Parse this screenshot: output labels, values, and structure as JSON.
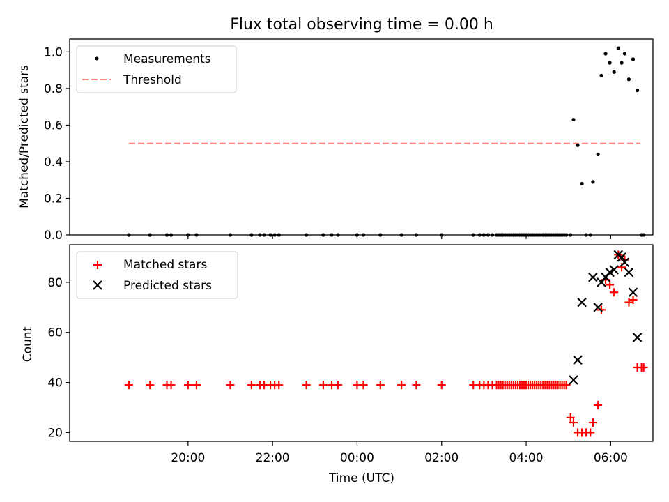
{
  "chart_data": [
    {
      "type": "scatter",
      "title": "Flux total observing time = 0.00 h",
      "xlabel": "",
      "ylabel": "Matched/Predicted stars",
      "xlim_hours": [
        17.2,
        31.0
      ],
      "ylim": [
        0,
        1.07
      ],
      "yticks": [
        0.0,
        0.2,
        0.4,
        0.6,
        0.8,
        1.0
      ],
      "ytick_labels": [
        "0.0",
        "0.2",
        "0.4",
        "0.6",
        "0.8",
        "1.0"
      ],
      "xticks_hours": [
        20,
        22,
        24,
        26,
        28,
        30
      ],
      "legend": {
        "placement": "upper-left",
        "entries": [
          "Measurements",
          "Threshold"
        ]
      },
      "threshold": {
        "value": 0.5,
        "x_range_hours": [
          18.6,
          30.7
        ],
        "color": "#ff7f7f"
      },
      "series": [
        {
          "name": "Measurements",
          "color": "#000000",
          "x_hours": [
            18.6,
            19.1,
            19.5,
            19.6,
            20.0,
            20.2,
            21.0,
            21.5,
            21.7,
            21.8,
            21.95,
            22.05,
            22.15,
            22.8,
            23.2,
            23.4,
            23.55,
            24.0,
            24.15,
            24.55,
            25.05,
            25.4,
            26.0,
            26.75,
            26.9,
            27.0,
            27.1,
            27.2,
            27.3,
            27.35,
            27.4,
            27.45,
            27.5,
            27.55,
            27.6,
            27.65,
            27.7,
            27.75,
            27.8,
            27.85,
            27.9,
            27.95,
            28.0,
            28.05,
            28.1,
            28.15,
            28.2,
            28.25,
            28.3,
            28.35,
            28.4,
            28.45,
            28.5,
            28.55,
            28.6,
            28.65,
            28.7,
            28.75,
            28.8,
            28.85,
            28.9,
            28.95,
            29.05,
            29.12,
            29.22,
            29.32,
            29.42,
            29.52,
            29.58,
            29.7,
            29.78,
            29.88,
            29.98,
            30.08,
            30.18,
            30.26,
            30.33,
            30.43,
            30.53,
            30.63,
            30.73,
            30.78
          ],
          "y": [
            0,
            0,
            0,
            0,
            0,
            0,
            0,
            0,
            0,
            0,
            0,
            0,
            0,
            0,
            0,
            0,
            0,
            0,
            0,
            0,
            0,
            0,
            0,
            0,
            0,
            0,
            0,
            0,
            0,
            0,
            0,
            0,
            0,
            0,
            0,
            0,
            0,
            0,
            0,
            0,
            0,
            0,
            0,
            0,
            0,
            0,
            0,
            0,
            0,
            0,
            0,
            0,
            0,
            0,
            0,
            0,
            0,
            0,
            0,
            0,
            0,
            0,
            0,
            0.63,
            0.49,
            0.28,
            0,
            0,
            0.29,
            0.44,
            0.87,
            0.99,
            0.94,
            0.89,
            1.02,
            0.94,
            0.99,
            0.85,
            0.96,
            0.79,
            0,
            0
          ]
        }
      ]
    },
    {
      "type": "scatter",
      "title": "",
      "xlabel": "Time (UTC)",
      "ylabel": "Count",
      "xlim_hours": [
        17.2,
        31.0
      ],
      "ylim": [
        16.5,
        95
      ],
      "yticks": [
        20,
        40,
        60,
        80
      ],
      "ytick_labels": [
        "20",
        "40",
        "60",
        "80"
      ],
      "xticks_hours": [
        20,
        22,
        24,
        26,
        28,
        30
      ],
      "xtick_labels": [
        "20:00",
        "22:00",
        "00:00",
        "02:00",
        "04:00",
        "06:00"
      ],
      "legend": {
        "placement": "upper-left",
        "entries": [
          "Matched stars",
          "Predicted stars"
        ]
      },
      "series": [
        {
          "name": "Matched stars",
          "marker": "plus",
          "color": "#ff0000",
          "x_hours": [
            18.6,
            19.1,
            19.5,
            19.6,
            20.0,
            20.2,
            21.0,
            21.5,
            21.7,
            21.8,
            21.95,
            22.05,
            22.15,
            22.8,
            23.2,
            23.4,
            23.55,
            24.0,
            24.15,
            24.55,
            25.05,
            25.4,
            26.0,
            26.75,
            26.9,
            27.0,
            27.1,
            27.2,
            27.3,
            27.35,
            27.4,
            27.45,
            27.5,
            27.55,
            27.6,
            27.65,
            27.7,
            27.75,
            27.8,
            27.85,
            27.9,
            27.95,
            28.0,
            28.05,
            28.1,
            28.15,
            28.2,
            28.25,
            28.3,
            28.35,
            28.4,
            28.45,
            28.5,
            28.55,
            28.6,
            28.65,
            28.7,
            28.75,
            28.8,
            28.85,
            28.9,
            28.95,
            29.05,
            29.12,
            29.22,
            29.32,
            29.42,
            29.52,
            29.58,
            29.7,
            29.78,
            29.88,
            29.98,
            30.08,
            30.18,
            30.26,
            30.33,
            30.43,
            30.53,
            30.63,
            30.73,
            30.78
          ],
          "y": [
            39,
            39,
            39,
            39,
            39,
            39,
            39,
            39,
            39,
            39,
            39,
            39,
            39,
            39,
            39,
            39,
            39,
            39,
            39,
            39,
            39,
            39,
            39,
            39,
            39,
            39,
            39,
            39,
            39,
            39,
            39,
            39,
            39,
            39,
            39,
            39,
            39,
            39,
            39,
            39,
            39,
            39,
            39,
            39,
            39,
            39,
            39,
            39,
            39,
            39,
            39,
            39,
            39,
            39,
            39,
            39,
            39,
            39,
            39,
            39,
            39,
            39,
            26,
            24,
            20,
            20,
            20,
            20,
            24,
            31,
            69,
            81,
            79,
            76,
            91,
            86,
            89,
            72,
            73,
            46,
            46,
            46
          ]
        },
        {
          "name": "Predicted stars",
          "marker": "x",
          "color": "#000000",
          "x_hours": [
            29.12,
            29.22,
            29.32,
            29.58,
            29.7,
            29.78,
            29.88,
            29.98,
            30.08,
            30.18,
            30.26,
            30.33,
            30.43,
            30.53,
            30.63
          ],
          "y": [
            41,
            49,
            72,
            82,
            70,
            80,
            82,
            84,
            85,
            91,
            90,
            88,
            84,
            76,
            58
          ]
        }
      ]
    }
  ]
}
